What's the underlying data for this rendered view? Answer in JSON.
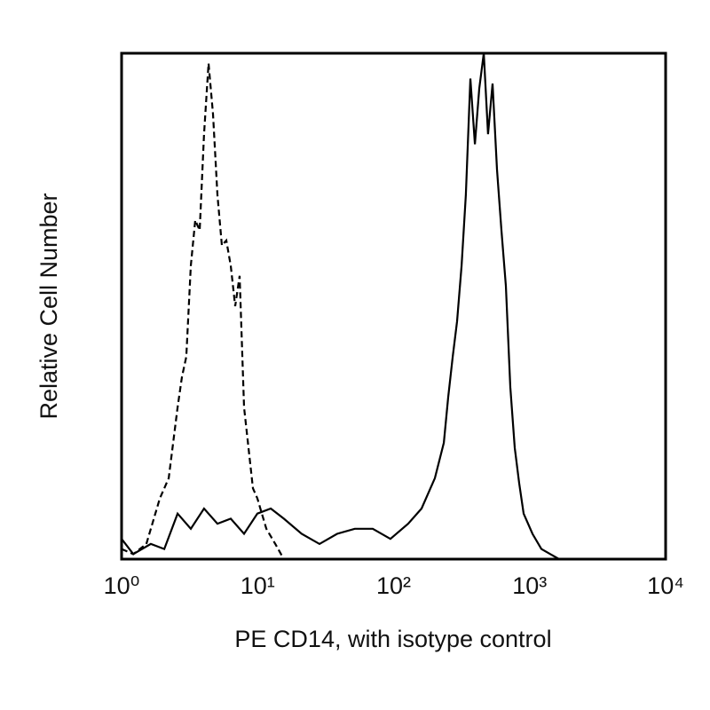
{
  "chart_data": {
    "type": "line",
    "xlabel": "PE CD14, with isotype control",
    "ylabel": "Relative Cell Number",
    "xscale": "log",
    "xlim": [
      1,
      10000
    ],
    "xticks": [
      {
        "value": 1,
        "label": "10⁰"
      },
      {
        "value": 10,
        "label": "10¹"
      },
      {
        "value": 100,
        "label": "10²"
      },
      {
        "value": 1000,
        "label": "10³"
      },
      {
        "value": 10000,
        "label": "10⁴"
      }
    ],
    "ylim": [
      0,
      100
    ],
    "series": [
      {
        "color": "#000000",
        "line_style": "dashed",
        "x": [
          1.0,
          1.22,
          1.52,
          1.91,
          2.22,
          2.58,
          2.78,
          2.99,
          3.23,
          3.48,
          3.75,
          4.04,
          4.36,
          4.7,
          5.07,
          5.46,
          5.89,
          6.35,
          6.84,
          7.38,
          7.95,
          8.57,
          9.24,
          9.96,
          11.6,
          13.5,
          15.6
        ],
        "values": [
          2,
          1,
          3,
          12,
          16,
          30,
          36,
          40,
          58,
          67,
          65,
          84,
          98,
          88,
          72,
          62,
          63,
          58,
          50,
          56,
          30,
          22,
          14,
          12,
          6,
          3,
          0
        ]
      },
      {
        "color": "#000000",
        "line_style": "solid",
        "x": [
          1.0,
          1.22,
          1.64,
          2.06,
          2.58,
          3.23,
          4.04,
          5.07,
          6.35,
          7.95,
          9.96,
          12.5,
          15.6,
          21.1,
          28.5,
          38.4,
          51.9,
          70.2,
          94.8,
          128,
          160.5,
          201,
          234,
          252,
          272,
          293,
          316,
          340,
          367,
          396,
          426,
          460,
          495,
          534,
          576,
          621,
          669,
          721,
          778,
          838,
          904,
          1050,
          1220,
          1419,
          1648
        ],
        "values": [
          4,
          1,
          3,
          2,
          9,
          6,
          10,
          7,
          8,
          5,
          9,
          10,
          8,
          5,
          3,
          5,
          6,
          6,
          4,
          7,
          10,
          16,
          23,
          32,
          40,
          47,
          58,
          72,
          95,
          82,
          93,
          100,
          84,
          94,
          77,
          65,
          54,
          34,
          22,
          15,
          9,
          5,
          2,
          1,
          0
        ]
      }
    ]
  }
}
